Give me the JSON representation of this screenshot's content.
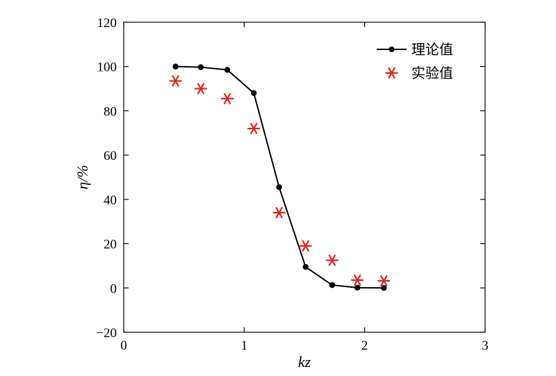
{
  "chart_data": {
    "type": "line",
    "title": "",
    "xlabel": "kz",
    "ylabel": "η/%",
    "xlim": [
      0,
      3
    ],
    "ylim": [
      -20,
      120
    ],
    "xticks": [
      0,
      1,
      2,
      3
    ],
    "yticks": [
      -20,
      0,
      20,
      40,
      60,
      80,
      100,
      120
    ],
    "xtick_labels": [
      "0",
      "1",
      "2",
      "3"
    ],
    "ytick_labels": [
      "−20",
      "0",
      "20",
      "40",
      "60",
      "80",
      "100",
      "120"
    ],
    "grid": false,
    "legend_position": "top-right",
    "series": [
      {
        "name": "理论值",
        "style": "line-with-dots",
        "color": "#000000",
        "x": [
          0.43,
          0.64,
          0.86,
          1.08,
          1.29,
          1.51,
          1.73,
          1.94,
          2.16
        ],
        "y": [
          100,
          99.7,
          98.5,
          88,
          45.5,
          9.5,
          1.3,
          0.1,
          0
        ]
      },
      {
        "name": "实验值",
        "style": "asterisk",
        "color": "#e02020",
        "x": [
          0.43,
          0.64,
          0.86,
          1.08,
          1.29,
          1.51,
          1.73,
          1.94,
          2.16
        ],
        "y": [
          93.5,
          90,
          85.5,
          72,
          34,
          19,
          12.5,
          3.5,
          3.2
        ]
      }
    ]
  }
}
